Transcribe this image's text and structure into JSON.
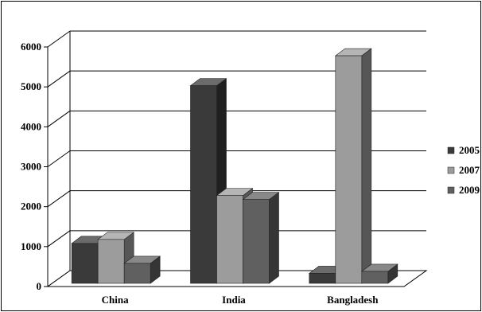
{
  "chart_data": {
    "type": "bar",
    "title": "",
    "xlabel": "",
    "ylabel": "",
    "categories": [
      "China",
      "India",
      "Bangladesh"
    ],
    "series": [
      {
        "name": "2005",
        "values": [
          1000,
          4950,
          250
        ],
        "color": "#3a3a3a"
      },
      {
        "name": "2007",
        "values": [
          1100,
          2200,
          5700
        ],
        "color": "#9c9c9c"
      },
      {
        "name": "2009",
        "values": [
          500,
          2100,
          300
        ],
        "color": "#606060"
      }
    ],
    "ylim": [
      0,
      6000
    ],
    "yticks": [
      0,
      1000,
      2000,
      3000,
      4000,
      5000,
      6000
    ],
    "grid": true,
    "legend_position": "right",
    "style": "3d-column"
  }
}
